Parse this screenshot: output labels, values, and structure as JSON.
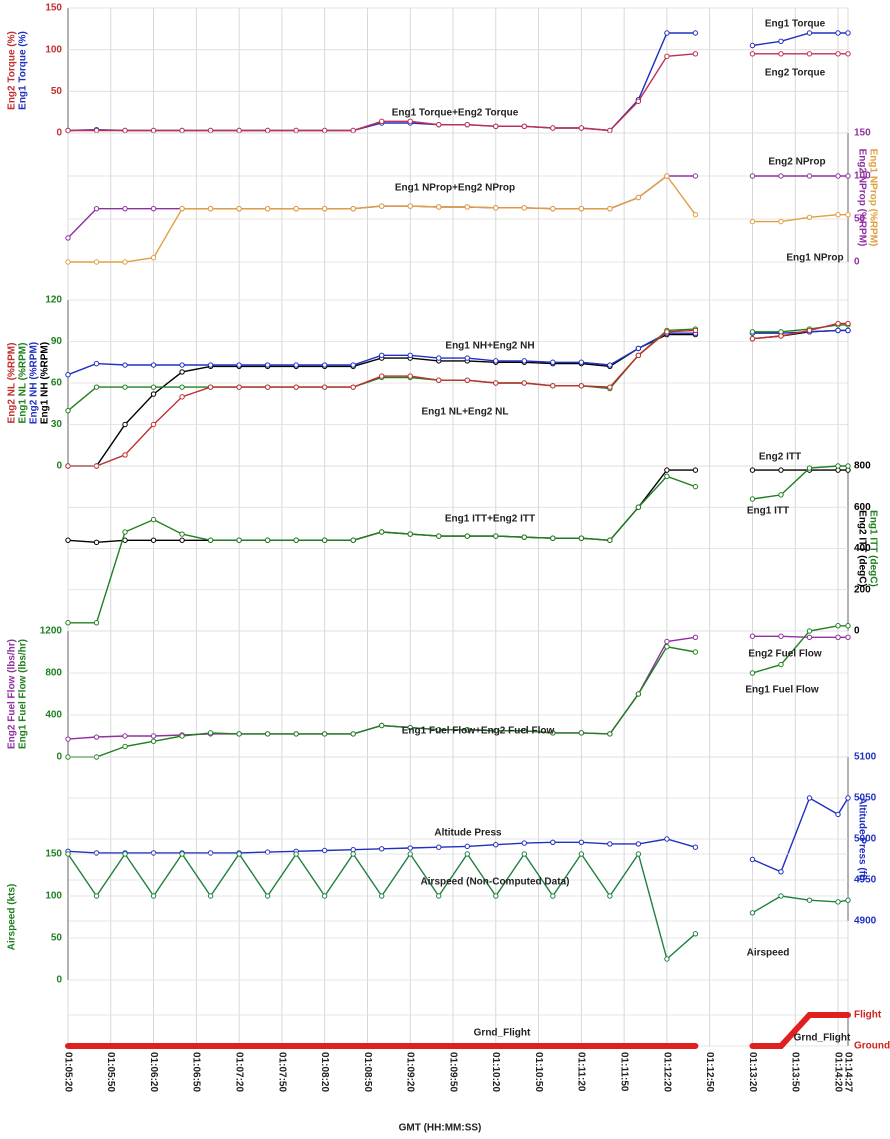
{
  "chart_data": [
    {
      "type": "line",
      "side": "left",
      "tick_color": "#c03030",
      "ylim": [
        0,
        150
      ],
      "yticks": [
        0,
        50,
        100,
        150
      ],
      "ylabels": [
        {
          "text": "Eng2 Torque (%)",
          "color": "#c03030"
        },
        {
          "text": "Eng1 Torque (%)",
          "color": "#2030c0"
        }
      ],
      "annotations": [
        "Eng1 Torque+Eng2 Torque",
        "Eng1 Torque",
        "Eng2 Torque"
      ],
      "xlim": [
        3920,
        4467
      ],
      "x": [
        3920,
        3940,
        3960,
        3980,
        4000,
        4020,
        4040,
        4060,
        4080,
        4100,
        4120,
        4140,
        4160,
        4180,
        4200,
        4220,
        4240,
        4260,
        4280,
        4300,
        4320,
        4340,
        4360,
        4380,
        4400,
        4420,
        4440,
        4460,
        4467
      ],
      "series": [
        {
          "name": "Eng1 Torque",
          "color": "#2030c0",
          "values": [
            3,
            4,
            3,
            3,
            3,
            3,
            3,
            3,
            3,
            3,
            3,
            12,
            12,
            10,
            10,
            8,
            8,
            6,
            6,
            3,
            40,
            120,
            120,
            null,
            105,
            110,
            120,
            120,
            120
          ]
        },
        {
          "name": "Eng2 Torque",
          "color": "#c03050",
          "values": [
            3,
            3,
            3,
            3,
            3,
            3,
            3,
            3,
            3,
            3,
            3,
            14,
            14,
            10,
            10,
            8,
            8,
            6,
            6,
            3,
            38,
            92,
            95,
            null,
            95,
            95,
            95,
            95,
            95
          ]
        }
      ]
    },
    {
      "type": "line",
      "side": "right",
      "tick_color": "#9030a0",
      "ylim": [
        0,
        150
      ],
      "yticks": [
        0,
        50,
        100,
        150
      ],
      "ylabels": [
        {
          "text": "Eng2 NProp (%RPM)",
          "color": "#9030a0"
        },
        {
          "text": "Eng1 NProp (%RPM)",
          "color": "#e0a040"
        }
      ],
      "annotations": [
        "Eng2 NProp",
        "Eng1 NProp+Eng2 NProp",
        "Eng1 NProp"
      ],
      "xlim": [
        3920,
        4467
      ],
      "x": [
        3920,
        3940,
        3960,
        3980,
        4000,
        4020,
        4040,
        4060,
        4080,
        4100,
        4120,
        4140,
        4160,
        4180,
        4200,
        4220,
        4240,
        4260,
        4280,
        4300,
        4320,
        4340,
        4360,
        4380,
        4400,
        4420,
        4440,
        4460,
        4467
      ],
      "series": [
        {
          "name": "Eng2 NProp",
          "color": "#9030a0",
          "values": [
            28,
            62,
            62,
            62,
            62,
            62,
            62,
            62,
            62,
            62,
            62,
            65,
            65,
            64,
            64,
            63,
            63,
            62,
            62,
            62,
            75,
            100,
            100,
            null,
            100,
            100,
            100,
            100,
            100
          ]
        },
        {
          "name": "Eng1 NProp",
          "color": "#e0a040",
          "values": [
            0,
            0,
            0,
            5,
            62,
            62,
            62,
            62,
            62,
            62,
            62,
            65,
            65,
            64,
            64,
            63,
            63,
            62,
            62,
            62,
            75,
            100,
            55,
            null,
            47,
            47,
            52,
            55,
            55
          ]
        }
      ]
    },
    {
      "type": "line",
      "side": "left",
      "tick_color": "#208020",
      "ylim": [
        0,
        120
      ],
      "yticks": [
        0,
        30,
        60,
        90,
        120
      ],
      "ylabels": [
        {
          "text": "Eng2 NL (%RPM)",
          "color": "#c03030"
        },
        {
          "text": "Eng1 NL (%RPM)",
          "color": "#208020"
        },
        {
          "text": "Eng2 NH (%RPM)",
          "color": "#2030c0"
        },
        {
          "text": "Eng1 NH (%RPM)",
          "color": "#000000"
        }
      ],
      "annotations": [
        "Eng1 NH+Eng2 NH",
        "Eng1 NL+Eng2 NL"
      ],
      "xlim": [
        3920,
        4467
      ],
      "x": [
        3920,
        3940,
        3960,
        3980,
        4000,
        4020,
        4040,
        4060,
        4080,
        4100,
        4120,
        4140,
        4160,
        4180,
        4200,
        4220,
        4240,
        4260,
        4280,
        4300,
        4320,
        4340,
        4360,
        4380,
        4400,
        4420,
        4440,
        4460,
        4467
      ],
      "series": [
        {
          "name": "Eng1 NH",
          "color": "#000000",
          "values": [
            0,
            0,
            30,
            52,
            68,
            72,
            72,
            72,
            72,
            72,
            72,
            78,
            78,
            76,
            76,
            75,
            75,
            74,
            74,
            72,
            85,
            95,
            95,
            null,
            92,
            94,
            97,
            98,
            98
          ]
        },
        {
          "name": "Eng2 NH",
          "color": "#2030c0",
          "values": [
            66,
            74,
            73,
            73,
            73,
            73,
            73,
            73,
            73,
            73,
            73,
            80,
            80,
            78,
            78,
            76,
            76,
            75,
            75,
            73,
            85,
            96,
            96,
            null,
            96,
            96,
            97,
            98,
            98
          ]
        },
        {
          "name": "Eng1 NL",
          "color": "#208020",
          "values": [
            40,
            57,
            57,
            57,
            57,
            57,
            57,
            57,
            57,
            57,
            57,
            64,
            64,
            62,
            62,
            60,
            60,
            58,
            58,
            56,
            80,
            98,
            99,
            null,
            97,
            97,
            99,
            102,
            102
          ]
        },
        {
          "name": "Eng2 NL",
          "color": "#c03030",
          "values": [
            0,
            0,
            8,
            30,
            50,
            57,
            57,
            57,
            57,
            57,
            57,
            65,
            65,
            62,
            62,
            60,
            60,
            58,
            58,
            57,
            80,
            97,
            98,
            null,
            92,
            94,
            98,
            103,
            103
          ]
        }
      ]
    },
    {
      "type": "line",
      "side": "right",
      "tick_color": "#000000",
      "ylim": [
        0,
        800
      ],
      "yticks": [
        0,
        200,
        400,
        600,
        800
      ],
      "ylabels": [
        {
          "text": "Eng2 ITT (degC)",
          "color": "#000000"
        },
        {
          "text": "Eng1 ITT (degC)",
          "color": "#208020"
        }
      ],
      "annotations": [
        "Eng2 ITT",
        "Eng1 ITT+Eng2 ITT",
        "Eng1 ITT"
      ],
      "xlim": [
        3920,
        4467
      ],
      "x": [
        3920,
        3940,
        3960,
        3980,
        4000,
        4020,
        4040,
        4060,
        4080,
        4100,
        4120,
        4140,
        4160,
        4180,
        4200,
        4220,
        4240,
        4260,
        4280,
        4300,
        4320,
        4340,
        4360,
        4380,
        4400,
        4420,
        4440,
        4460,
        4467
      ],
      "series": [
        {
          "name": "Eng2 ITT",
          "color": "#000000",
          "values": [
            440,
            430,
            440,
            440,
            440,
            440,
            440,
            440,
            440,
            440,
            440,
            480,
            470,
            460,
            460,
            460,
            455,
            450,
            450,
            440,
            600,
            780,
            780,
            null,
            780,
            780,
            780,
            780,
            780
          ]
        },
        {
          "name": "Eng1 ITT",
          "color": "#208020",
          "values": [
            40,
            40,
            480,
            540,
            470,
            440,
            440,
            440,
            440,
            440,
            440,
            480,
            470,
            460,
            460,
            460,
            455,
            450,
            450,
            440,
            600,
            750,
            700,
            null,
            640,
            660,
            790,
            800,
            800
          ]
        }
      ]
    },
    {
      "type": "line",
      "side": "left",
      "tick_color": "#208020",
      "ylim": [
        0,
        1200
      ],
      "yticks": [
        0,
        400,
        800,
        1200
      ],
      "ylabels": [
        {
          "text": "Eng2 Fuel Flow (lbs/hr)",
          "color": "#9030a0"
        },
        {
          "text": "Eng1 Fuel Flow (lbs/hr)",
          "color": "#208020"
        }
      ],
      "annotations": [
        "Eng2 Fuel Flow",
        "Eng1 Fuel Flow+Eng2 Fuel Flow",
        "Eng1 Fuel Flow"
      ],
      "xlim": [
        3920,
        4467
      ],
      "x": [
        3920,
        3940,
        3960,
        3980,
        4000,
        4020,
        4040,
        4060,
        4080,
        4100,
        4120,
        4140,
        4160,
        4180,
        4200,
        4220,
        4240,
        4260,
        4280,
        4300,
        4320,
        4340,
        4360,
        4380,
        4400,
        4420,
        4440,
        4460,
        4467
      ],
      "series": [
        {
          "name": "Eng2 Fuel Flow",
          "color": "#9030a0",
          "values": [
            170,
            190,
            200,
            200,
            210,
            220,
            220,
            220,
            220,
            220,
            220,
            300,
            280,
            260,
            260,
            250,
            250,
            230,
            230,
            220,
            600,
            1100,
            1140,
            null,
            1150,
            1150,
            1140,
            1140,
            1140
          ]
        },
        {
          "name": "Eng1 Fuel Flow",
          "color": "#208020",
          "values": [
            0,
            0,
            100,
            150,
            200,
            230,
            220,
            220,
            220,
            220,
            220,
            300,
            280,
            260,
            260,
            250,
            250,
            230,
            230,
            220,
            600,
            1050,
            1000,
            null,
            800,
            880,
            1200,
            1250,
            1250
          ]
        }
      ]
    },
    {
      "type": "line",
      "side": "right",
      "tick_color": "#2030c0",
      "ylim": [
        4900,
        5100
      ],
      "yticks": [
        4900,
        4950,
        5000,
        5050,
        5100
      ],
      "ylabels": [
        {
          "text": "Altitude Press (ft)",
          "color": "#2030c0"
        }
      ],
      "annotations": [
        "Altitude Press"
      ],
      "xlim": [
        3920,
        4467
      ],
      "x": [
        3920,
        3940,
        3960,
        3980,
        4000,
        4020,
        4040,
        4060,
        4080,
        4100,
        4120,
        4140,
        4160,
        4180,
        4200,
        4220,
        4240,
        4260,
        4280,
        4300,
        4320,
        4340,
        4360,
        4380,
        4400,
        4420,
        4440,
        4460,
        4467
      ],
      "series": [
        {
          "name": "Altitude Press",
          "color": "#2030c0",
          "values": [
            4985,
            4983,
            4983,
            4983,
            4983,
            4983,
            4983,
            4984,
            4985,
            4986,
            4987,
            4988,
            4989,
            4990,
            4991,
            4993,
            4995,
            4996,
            4996,
            4994,
            4994,
            5000,
            4990,
            null,
            4975,
            4960,
            5050,
            5030,
            5050
          ]
        }
      ]
    },
    {
      "type": "line",
      "side": "left",
      "tick_color": "#208020",
      "ylim": [
        0,
        150
      ],
      "yticks": [
        0,
        50,
        100,
        150
      ],
      "ylabels": [
        {
          "text": "Airspeed (kts)",
          "color": "#208020"
        }
      ],
      "annotations": [
        "Airspeed (Non-Computed Data)",
        "Airspeed"
      ],
      "xlim": [
        3920,
        4467
      ],
      "x": [
        3920,
        3940,
        3960,
        3980,
        4000,
        4020,
        4040,
        4060,
        4080,
        4100,
        4120,
        4140,
        4160,
        4180,
        4200,
        4220,
        4240,
        4260,
        4280,
        4300,
        4320,
        4340,
        4360,
        4380,
        4400,
        4420,
        4440,
        4460,
        4467
      ],
      "series": [
        {
          "name": "Airspeed (Non-Computed Data)",
          "color": "#208040",
          "values": [
            150,
            100,
            150,
            100,
            150,
            100,
            150,
            100,
            150,
            100,
            150,
            100,
            150,
            100,
            150,
            100,
            150,
            100,
            150,
            100,
            150,
            25,
            55,
            null,
            null,
            null,
            null,
            null,
            null
          ]
        },
        {
          "name": "Airspeed",
          "color": "#208040",
          "values": [
            null,
            null,
            null,
            null,
            null,
            null,
            null,
            null,
            null,
            null,
            null,
            null,
            null,
            null,
            null,
            null,
            null,
            null,
            null,
            null,
            null,
            null,
            null,
            null,
            80,
            100,
            95,
            93,
            95
          ]
        }
      ]
    },
    {
      "type": "line",
      "side": "right",
      "tick_color": "#d02020",
      "ylim": [
        0,
        1
      ],
      "yticks": [
        {
          "value": 0,
          "label": "Ground"
        },
        {
          "value": 1,
          "label": "Flight"
        }
      ],
      "ylabels": [],
      "annotations": [
        "Grnd_Flight",
        "Grnd_Flight"
      ],
      "line_width": 6,
      "xlabel": "GMT (HH:MM:SS)",
      "xticks": [
        {
          "value": 3920,
          "label": "01:05:20"
        },
        {
          "value": 3950,
          "label": "01:05:50"
        },
        {
          "value": 3980,
          "label": "01:06:20"
        },
        {
          "value": 4010,
          "label": "01:06:50"
        },
        {
          "value": 4040,
          "label": "01:07:20"
        },
        {
          "value": 4070,
          "label": "01:07:50"
        },
        {
          "value": 4100,
          "label": "01:08:20"
        },
        {
          "value": 4130,
          "label": "01:08:50"
        },
        {
          "value": 4160,
          "label": "01:09:20"
        },
        {
          "value": 4190,
          "label": "01:09:50"
        },
        {
          "value": 4220,
          "label": "01:10:20"
        },
        {
          "value": 4250,
          "label": "01:10:50"
        },
        {
          "value": 4280,
          "label": "01:11:20"
        },
        {
          "value": 4310,
          "label": "01:11:50"
        },
        {
          "value": 4340,
          "label": "01:12:20"
        },
        {
          "value": 4370,
          "label": "01:12:50"
        },
        {
          "value": 4400,
          "label": "01:13:20"
        },
        {
          "value": 4430,
          "label": "01:13:50"
        },
        {
          "value": 4460,
          "label": "01:14:20"
        },
        {
          "value": 4467,
          "label": "01:14:27"
        }
      ],
      "xlim": [
        3920,
        4467
      ],
      "x": [
        3920,
        3940,
        3960,
        3980,
        4000,
        4020,
        4040,
        4060,
        4080,
        4100,
        4120,
        4140,
        4160,
        4180,
        4200,
        4220,
        4240,
        4260,
        4280,
        4300,
        4320,
        4340,
        4360,
        4380,
        4400,
        4420,
        4440,
        4460,
        4467
      ],
      "series": [
        {
          "name": "Grnd_Flight",
          "color": "#e02020",
          "values": [
            0,
            0,
            0,
            0,
            0,
            0,
            0,
            0,
            0,
            0,
            0,
            0,
            0,
            0,
            0,
            0,
            0,
            0,
            0,
            0,
            0,
            0,
            0,
            null,
            0,
            0,
            1,
            1,
            1
          ]
        }
      ]
    }
  ]
}
